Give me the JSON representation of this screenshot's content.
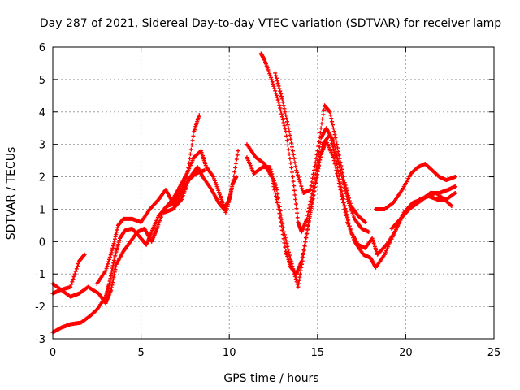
{
  "chart_data": {
    "type": "scatter",
    "title": "Day 287 of 2021, Sidereal Day-to-day VTEC variation (SDTVAR) for receiver lamp",
    "xlabel": "GPS time / hours",
    "ylabel": "SDTVAR / TECUs",
    "xlim": [
      0,
      25
    ],
    "ylim": [
      -3,
      6
    ],
    "xticks": [
      0,
      5,
      10,
      15,
      20,
      25
    ],
    "yticks": [
      -3,
      -2,
      -1,
      0,
      1,
      2,
      3,
      4,
      5,
      6
    ],
    "grid": true,
    "marker": "plus",
    "color": "#ff0000",
    "series": [
      {
        "points": [
          [
            0,
            -2.8
          ],
          [
            0.5,
            -2.65
          ],
          [
            1,
            -2.55
          ],
          [
            1.6,
            -2.5
          ],
          [
            2.1,
            -2.3
          ],
          [
            2.5,
            -2.1
          ],
          [
            3,
            -1.7
          ],
          [
            3.2,
            -1.3
          ],
          [
            3.5,
            -0.5
          ],
          [
            3.8,
            0.1
          ],
          [
            4.1,
            0.35
          ],
          [
            4.5,
            0.4
          ],
          [
            5,
            0.1
          ],
          [
            5.3,
            -0.1
          ],
          [
            5.6,
            0.3
          ],
          [
            6,
            0.8
          ],
          [
            6.5,
            1.1
          ],
          [
            7,
            1.2
          ],
          [
            7.4,
            1.6
          ],
          [
            7.8,
            2.0
          ],
          [
            8.2,
            2.3
          ],
          [
            8.5,
            2.0
          ],
          [
            9,
            1.6
          ],
          [
            9.4,
            1.2
          ],
          [
            9.7,
            1.0
          ],
          [
            10,
            1.3
          ],
          [
            10.2,
            1.8
          ],
          [
            10.4,
            2.0
          ]
        ]
      },
      {
        "points": [
          [
            0,
            -1.6
          ],
          [
            0.4,
            -1.5
          ],
          [
            1,
            -1.4
          ],
          [
            1.5,
            -0.6
          ],
          [
            1.8,
            -0.4
          ]
        ]
      },
      {
        "points": [
          [
            0,
            -1.3
          ],
          [
            0.5,
            -1.5
          ],
          [
            1,
            -1.7
          ],
          [
            1.5,
            -1.6
          ],
          [
            2,
            -1.4
          ],
          [
            2.6,
            -1.6
          ],
          [
            3,
            -1.9
          ],
          [
            3.3,
            -1.5
          ],
          [
            3.6,
            -0.7
          ],
          [
            4,
            -0.3
          ],
          [
            4.4,
            0.0
          ],
          [
            4.8,
            0.3
          ],
          [
            5.2,
            0.4
          ],
          [
            5.6,
            0.0
          ],
          [
            5.9,
            0.4
          ],
          [
            6.3,
            1.0
          ],
          [
            6.8,
            1.3
          ],
          [
            7.2,
            1.7
          ],
          [
            7.6,
            2.1
          ],
          [
            8,
            2.6
          ],
          [
            8.4,
            2.8
          ],
          [
            8.7,
            2.3
          ],
          [
            9.1,
            2.0
          ],
          [
            9.5,
            1.4
          ],
          [
            9.8,
            0.9
          ],
          [
            10.1,
            1.5
          ],
          [
            10.5,
            2.8
          ]
        ]
      },
      {
        "points": [
          [
            2.5,
            -1.3
          ],
          [
            3,
            -0.9
          ],
          [
            3.4,
            -0.2
          ],
          [
            3.7,
            0.5
          ],
          [
            4,
            0.7
          ],
          [
            4.5,
            0.7
          ],
          [
            5,
            0.6
          ],
          [
            5.5,
            1.0
          ],
          [
            6,
            1.3
          ],
          [
            6.4,
            1.6
          ],
          [
            6.8,
            1.2
          ],
          [
            7.2,
            1.5
          ],
          [
            7.6,
            2.0
          ],
          [
            8,
            3.4
          ],
          [
            8.3,
            3.9
          ]
        ]
      },
      {
        "points": [
          [
            6.3,
            0.9
          ],
          [
            6.8,
            1.0
          ],
          [
            7.3,
            1.3
          ],
          [
            7.7,
            1.9
          ],
          [
            8.1,
            2.1
          ],
          [
            8.6,
            2.2
          ]
        ]
      },
      {
        "points": [
          [
            11,
            3.0
          ],
          [
            11.5,
            2.6
          ],
          [
            12,
            2.4
          ],
          [
            12.4,
            2.0
          ],
          [
            12.8,
            1.0
          ],
          [
            13.2,
            -0.3
          ],
          [
            13.5,
            -0.8
          ],
          [
            13.8,
            -1.0
          ],
          [
            14.1,
            -0.6
          ],
          [
            14.5,
            0.6
          ],
          [
            14.9,
            1.8
          ],
          [
            15.2,
            2.7
          ],
          [
            15.5,
            3.1
          ],
          [
            15.9,
            2.6
          ],
          [
            16.3,
            1.6
          ],
          [
            16.7,
            0.6
          ],
          [
            17.1,
            0.0
          ],
          [
            17.6,
            -0.4
          ],
          [
            18,
            -0.5
          ],
          [
            18.3,
            -0.8
          ],
          [
            18.8,
            -0.4
          ],
          [
            19.3,
            0.2
          ],
          [
            19.8,
            0.8
          ],
          [
            20.3,
            1.1
          ],
          [
            20.8,
            1.3
          ],
          [
            21.3,
            1.4
          ],
          [
            21.8,
            1.3
          ],
          [
            22.3,
            1.3
          ],
          [
            22.8,
            1.5
          ]
        ]
      },
      {
        "points": [
          [
            11,
            2.6
          ],
          [
            11.4,
            2.1
          ],
          [
            11.9,
            2.3
          ],
          [
            12.3,
            2.3
          ],
          [
            12.7,
            1.6
          ],
          [
            13.1,
            0.3
          ],
          [
            13.5,
            -0.6
          ],
          [
            13.9,
            -1.4
          ],
          [
            14.2,
            -0.4
          ],
          [
            14.6,
            0.9
          ],
          [
            15,
            2.2
          ],
          [
            15.3,
            3.0
          ],
          [
            15.7,
            3.3
          ],
          [
            16.1,
            2.4
          ],
          [
            16.5,
            1.2
          ],
          [
            16.9,
            0.3
          ],
          [
            17.3,
            -0.1
          ],
          [
            17.7,
            -0.2
          ],
          [
            18.1,
            0.1
          ],
          [
            18.4,
            -0.4
          ],
          [
            18.9,
            -0.1
          ],
          [
            19.4,
            0.3
          ],
          [
            19.9,
            0.9
          ],
          [
            20.4,
            1.2
          ],
          [
            20.9,
            1.3
          ],
          [
            21.4,
            1.5
          ],
          [
            21.9,
            1.5
          ],
          [
            22.4,
            1.6
          ],
          [
            22.8,
            1.7
          ]
        ]
      },
      {
        "points": [
          [
            11.8,
            5.8
          ],
          [
            12,
            5.6
          ],
          [
            12.4,
            5.0
          ],
          [
            12.8,
            4.3
          ],
          [
            13.2,
            3.4
          ],
          [
            13.6,
            2.0
          ],
          [
            13.9,
            0.6
          ],
          [
            14.1,
            0.3
          ],
          [
            14.4,
            0.7
          ],
          [
            14.8,
            1.8
          ],
          [
            15.2,
            3.2
          ],
          [
            15.5,
            3.5
          ],
          [
            15.9,
            3.1
          ],
          [
            16.3,
            2.2
          ],
          [
            16.7,
            1.3
          ],
          [
            17.1,
            0.7
          ],
          [
            17.5,
            0.4
          ],
          [
            17.9,
            0.3
          ]
        ]
      },
      {
        "points": [
          [
            12.6,
            5.2
          ],
          [
            13,
            4.4
          ],
          [
            13.4,
            3.4
          ],
          [
            13.8,
            2.2
          ],
          [
            14.2,
            1.5
          ],
          [
            14.6,
            1.6
          ],
          [
            15,
            2.8
          ],
          [
            15.4,
            4.2
          ],
          [
            15.7,
            4.0
          ],
          [
            16.1,
            3.0
          ],
          [
            16.5,
            1.9
          ],
          [
            16.9,
            1.1
          ],
          [
            17.3,
            0.8
          ],
          [
            17.7,
            0.6
          ]
        ]
      },
      {
        "points": [
          [
            18.3,
            1.0
          ],
          [
            18.8,
            1.0
          ],
          [
            19.3,
            1.2
          ],
          [
            19.8,
            1.6
          ],
          [
            20.3,
            2.1
          ],
          [
            20.7,
            2.3
          ],
          [
            21.1,
            2.4
          ],
          [
            21.5,
            2.2
          ],
          [
            21.9,
            2.0
          ],
          [
            22.3,
            1.9
          ],
          [
            22.8,
            2.0
          ]
        ]
      },
      {
        "points": [
          [
            19.2,
            0.4
          ],
          [
            19.7,
            0.7
          ],
          [
            20.2,
            1.0
          ],
          [
            20.7,
            1.2
          ],
          [
            21.2,
            1.4
          ],
          [
            21.7,
            1.5
          ],
          [
            22.2,
            1.3
          ],
          [
            22.6,
            1.1
          ]
        ]
      }
    ]
  }
}
